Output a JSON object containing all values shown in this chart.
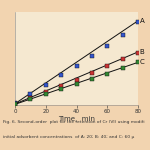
{
  "xlabel": "Time,  min",
  "xlim": [
    0,
    80
  ],
  "ylim": [
    0,
    14
  ],
  "x_ticks": [
    0,
    20,
    40,
    60,
    80
  ],
  "y_ticks": [],
  "background_color": "#f2d4b0",
  "plot_bg_color": "#f5e8d0",
  "series": [
    {
      "label": "A",
      "marker_color": "#3355cc",
      "x": [
        0,
        10,
        20,
        30,
        40,
        50,
        60,
        70,
        80
      ],
      "y": [
        0.3,
        1.6,
        3.0,
        4.5,
        5.9,
        7.4,
        8.9,
        10.6,
        12.5
      ],
      "line_slope": 0.156,
      "line_intercept": 0.2
    },
    {
      "label": "B",
      "marker_color": "#cc3333",
      "x": [
        0,
        10,
        20,
        30,
        40,
        50,
        60,
        70,
        80
      ],
      "y": [
        0.2,
        1.0,
        1.9,
        2.9,
        3.8,
        4.8,
        5.8,
        6.9,
        7.9
      ],
      "line_slope": 0.098,
      "line_intercept": 0.15
    },
    {
      "label": "C",
      "marker_color": "#338833",
      "x": [
        0,
        10,
        20,
        30,
        40,
        50,
        60,
        70,
        80
      ],
      "y": [
        0.15,
        0.85,
        1.6,
        2.35,
        3.1,
        3.9,
        4.7,
        5.6,
        6.4
      ],
      "line_slope": 0.079,
      "line_intercept": 0.1
    }
  ],
  "label_fontsize": 5,
  "tick_fontsize": 4,
  "axis_label_fontsize": 5,
  "caption_line1": "Fig. 6. Second-order  plot for the retention of Cr (VI) using modifi",
  "caption_line2": "initial adsorbent concentrations  of A: 20; B: 40; and C: 60 µ"
}
